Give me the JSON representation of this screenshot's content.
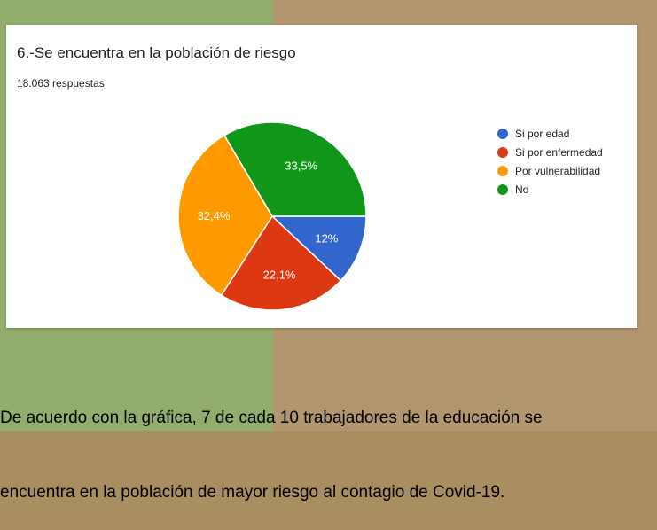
{
  "card": {
    "title": "6.-Se encuentra en la población de riesgo",
    "subtitle": "18.063 respuestas"
  },
  "chart_data": {
    "type": "pie",
    "title": "6.-Se encuentra en la población de riesgo",
    "slices": [
      {
        "label": "Si por edad",
        "value": 12.0,
        "display": "12%",
        "color": "#3366cc"
      },
      {
        "label": "Si por enfermedad",
        "value": 22.1,
        "display": "22,1%",
        "color": "#dc3912"
      },
      {
        "label": "Por vulnerabilidad",
        "value": 32.4,
        "display": "32,4%",
        "color": "#ff9900"
      },
      {
        "label": "No",
        "value": 33.5,
        "display": "33,5%",
        "color": "#109618"
      }
    ],
    "legend_position": "right"
  },
  "caption": {
    "line1": "De acuerdo con la gráfica, 7 de cada 10 trabajadores de la educación se",
    "line2": "encuentra en la población de mayor riesgo al contagio de Covid-19."
  }
}
